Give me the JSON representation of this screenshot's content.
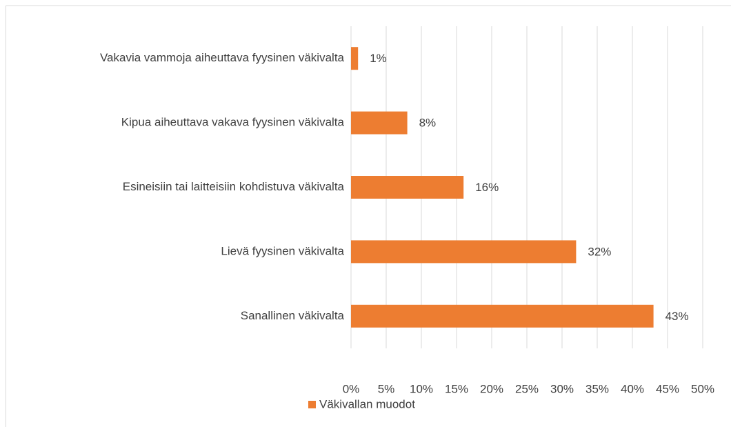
{
  "chart_data": {
    "type": "bar",
    "orientation": "horizontal",
    "categories": [
      "Vakavia vammoja aiheuttava fyysinen väkivalta",
      "Kipua aiheuttava vakava fyysinen väkivalta",
      "Esineisiin tai laitteisiin kohdistuva väkivalta",
      "Lievä fyysinen väkivalta",
      "Sanallinen väkivalta"
    ],
    "series": [
      {
        "name": "Väkivallan muodot",
        "color": "#ed7d31",
        "values": [
          1,
          8,
          16,
          32,
          43
        ],
        "value_labels": [
          "1%",
          "8%",
          "16%",
          "32%",
          "43%"
        ]
      }
    ],
    "xlim": [
      0,
      50
    ],
    "xticks": [
      {
        "value": 0,
        "label": "0%"
      },
      {
        "value": 5,
        "label": "5%"
      },
      {
        "value": 10,
        "label": "10%"
      },
      {
        "value": 15,
        "label": "15%"
      },
      {
        "value": 20,
        "label": "20%"
      },
      {
        "value": 25,
        "label": "25%"
      },
      {
        "value": 30,
        "label": "30%"
      },
      {
        "value": 35,
        "label": "35%"
      },
      {
        "value": 40,
        "label": "40%"
      },
      {
        "value": 45,
        "label": "45%"
      },
      {
        "value": 50,
        "label": "50%"
      }
    ],
    "grid": true,
    "legend": "bottom"
  }
}
